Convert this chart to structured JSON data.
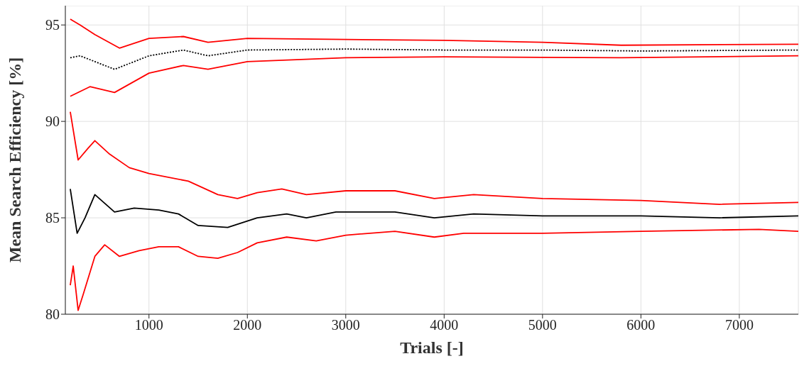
{
  "chart_data": {
    "type": "line",
    "xlabel": "Trials [-]",
    "ylabel": "Mean Search Efficiency [%]",
    "xlim": [
      150,
      7600
    ],
    "ylim": [
      80,
      96
    ],
    "xticks": [
      1000,
      2000,
      3000,
      4000,
      5000,
      6000,
      7000
    ],
    "yticks": [
      80,
      85,
      90,
      95
    ],
    "grid": true,
    "legend": false,
    "series": [
      {
        "color": "#ff0000",
        "x": [
          200,
          300,
          450,
          700,
          1000,
          1350,
          1600,
          2000,
          3000,
          4000,
          5000,
          5800,
          7600
        ],
        "values": [
          95.3,
          95.0,
          94.5,
          93.8,
          94.3,
          94.4,
          94.1,
          94.3,
          94.25,
          94.2,
          94.1,
          93.95,
          94.0
        ]
      },
      {
        "color": "#000000",
        "line_style": "dotted",
        "x": [
          200,
          300,
          450,
          650,
          1000,
          1350,
          1600,
          2000,
          3000,
          4000,
          5000,
          6000,
          7600
        ],
        "values": [
          93.3,
          93.4,
          93.1,
          92.7,
          93.4,
          93.7,
          93.4,
          93.7,
          93.75,
          93.7,
          93.7,
          93.65,
          93.7
        ]
      },
      {
        "color": "#ff0000",
        "x": [
          200,
          400,
          650,
          1000,
          1350,
          1600,
          2000,
          3000,
          4000,
          5800,
          7600
        ],
        "values": [
          91.3,
          91.8,
          91.5,
          92.5,
          92.9,
          92.7,
          93.1,
          93.3,
          93.35,
          93.3,
          93.4
        ]
      },
      {
        "color": "#ff0000",
        "x": [
          200,
          280,
          380,
          450,
          600,
          800,
          1000,
          1400,
          1700,
          1900,
          2100,
          2350,
          2600,
          3000,
          3500,
          3900,
          4300,
          5000,
          6000,
          6800,
          7600
        ],
        "values": [
          90.5,
          88.0,
          88.6,
          89.0,
          88.3,
          87.6,
          87.3,
          86.9,
          86.2,
          86.0,
          86.3,
          86.5,
          86.2,
          86.4,
          86.4,
          86.0,
          86.2,
          86.0,
          85.9,
          85.7,
          85.8
        ]
      },
      {
        "color": "#000000",
        "x": [
          200,
          270,
          350,
          450,
          650,
          850,
          1100,
          1300,
          1500,
          1800,
          2100,
          2400,
          2600,
          2900,
          3500,
          3900,
          4300,
          5000,
          6000,
          6800,
          7600
        ],
        "values": [
          86.5,
          84.2,
          85.0,
          86.2,
          85.3,
          85.5,
          85.4,
          85.2,
          84.6,
          84.5,
          85.0,
          85.2,
          85.0,
          85.3,
          85.3,
          85.0,
          85.2,
          85.1,
          85.1,
          85.0,
          85.1
        ]
      },
      {
        "color": "#ff0000",
        "x": [
          200,
          230,
          280,
          330,
          450,
          550,
          700,
          900,
          1100,
          1300,
          1500,
          1700,
          1900,
          2100,
          2400,
          2700,
          3000,
          3500,
          3900,
          4200,
          5000,
          6000,
          7200,
          7600
        ],
        "values": [
          81.5,
          82.5,
          80.2,
          81.0,
          83.0,
          83.6,
          83.0,
          83.3,
          83.5,
          83.5,
          83.0,
          82.9,
          83.2,
          83.7,
          84.0,
          83.8,
          84.1,
          84.3,
          84.0,
          84.2,
          84.2,
          84.3,
          84.4,
          84.3
        ]
      }
    ]
  }
}
